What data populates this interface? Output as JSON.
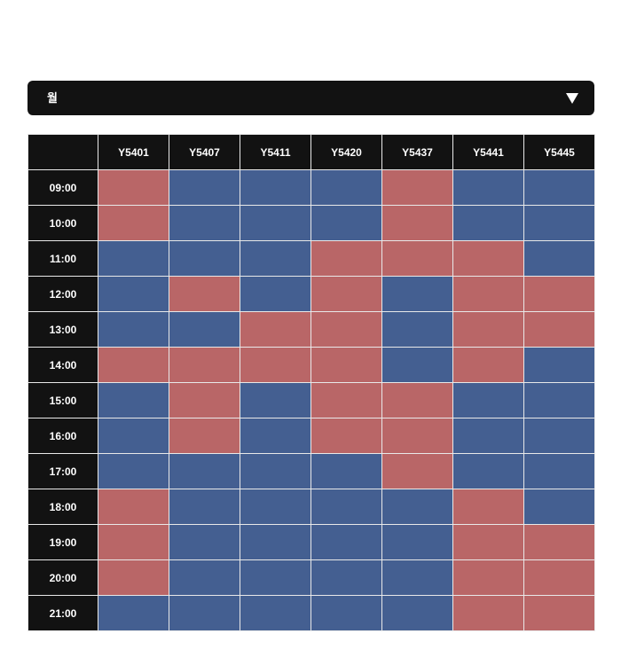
{
  "day_select": {
    "value": "월",
    "icon": "chevron-down-icon"
  },
  "colors": {
    "available": "#445f91",
    "occupied": "#b96667",
    "header": "#121212"
  },
  "rooms": [
    "Y5401",
    "Y5407",
    "Y5411",
    "Y5420",
    "Y5437",
    "Y5441",
    "Y5445"
  ],
  "times": [
    "09:00",
    "10:00",
    "11:00",
    "12:00",
    "13:00",
    "14:00",
    "15:00",
    "16:00",
    "17:00",
    "18:00",
    "19:00",
    "20:00",
    "21:00"
  ],
  "schedule_legend": "1 = occupied (red), 0 = available (blue); rows follow times, columns follow rooms",
  "schedule": [
    [
      1,
      0,
      0,
      0,
      1,
      0,
      0
    ],
    [
      1,
      0,
      0,
      0,
      1,
      0,
      0
    ],
    [
      0,
      0,
      0,
      1,
      1,
      1,
      0
    ],
    [
      0,
      1,
      0,
      1,
      0,
      1,
      1
    ],
    [
      0,
      0,
      1,
      1,
      0,
      1,
      1
    ],
    [
      1,
      1,
      1,
      1,
      0,
      1,
      0
    ],
    [
      0,
      1,
      0,
      1,
      1,
      0,
      0
    ],
    [
      0,
      1,
      0,
      1,
      1,
      0,
      0
    ],
    [
      0,
      0,
      0,
      0,
      1,
      0,
      0
    ],
    [
      1,
      0,
      0,
      0,
      0,
      1,
      0
    ],
    [
      1,
      0,
      0,
      0,
      0,
      1,
      1
    ],
    [
      1,
      0,
      0,
      0,
      0,
      1,
      1
    ],
    [
      0,
      0,
      0,
      0,
      0,
      1,
      1
    ]
  ]
}
